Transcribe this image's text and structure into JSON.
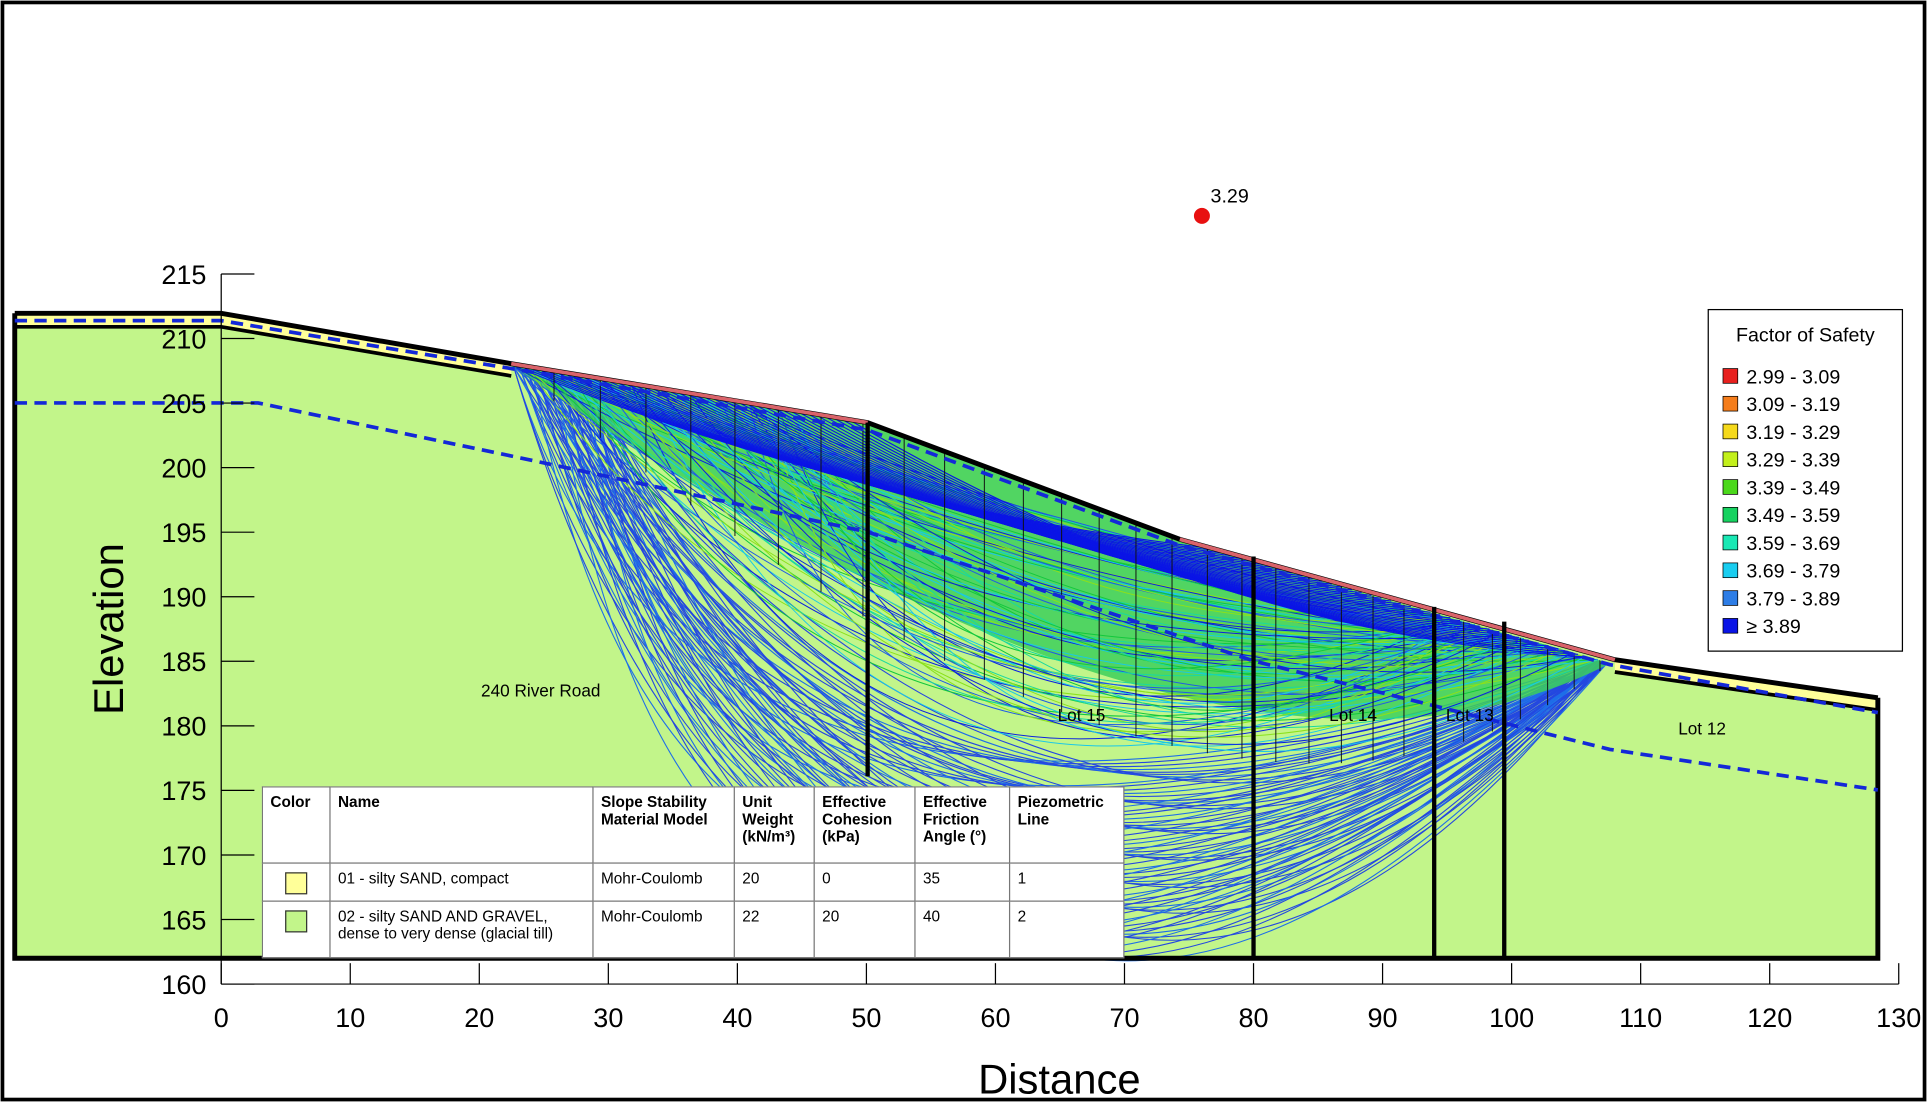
{
  "chart_data": {
    "type": "slope-stability",
    "x_label": "Distance",
    "y_label": "Elevation",
    "xlim": [
      0,
      130
    ],
    "ylim": [
      160,
      215
    ],
    "xticks": [
      0,
      10,
      20,
      30,
      40,
      50,
      60,
      70,
      80,
      90,
      100,
      110,
      120,
      130
    ],
    "yticks": [
      160,
      165,
      170,
      175,
      180,
      185,
      190,
      195,
      200,
      205,
      210,
      215
    ],
    "critical_center": {
      "x": 76,
      "y": 219.5,
      "factor_of_safety": 3.29,
      "color": "#e81010"
    },
    "region_labels": [
      "240 River Road",
      "Lot 15",
      "Lot 14",
      "Lot 13",
      "Lot 12"
    ],
    "legend": {
      "title": "Factor of Safety",
      "items": [
        {
          "label": "2.99 - 3.09",
          "color": "#e8201e"
        },
        {
          "label": "3.09 - 3.19",
          "color": "#f57d1b"
        },
        {
          "label": "3.19 - 3.29",
          "color": "#f5d91b"
        },
        {
          "label": "3.29 - 3.39",
          "color": "#c3f01b"
        },
        {
          "label": "3.39 - 3.49",
          "color": "#4bd81b"
        },
        {
          "label": "3.49 - 3.59",
          "color": "#16d260"
        },
        {
          "label": "3.59 - 3.69",
          "color": "#19e8b4"
        },
        {
          "label": "3.69 - 3.79",
          "color": "#19cdf0"
        },
        {
          "label": "3.79 - 3.89",
          "color": "#2d7de6"
        },
        {
          "label": "≥ 3.89",
          "color": "#0a14e6"
        }
      ]
    },
    "materials_table": {
      "headers": [
        "Color",
        "Name",
        "Slope Stability Material Model",
        "Unit Weight (kN/m³)",
        "Effective Cohesion (kPa)",
        "Effective Friction Angle (°)",
        "Piezometric Line"
      ],
      "rows": [
        {
          "color": "#ffff99",
          "cells": [
            "01 - silty SAND, compact",
            "Mohr-Coulomb",
            20,
            0,
            35,
            1
          ]
        },
        {
          "color": "#c2f58a",
          "cells": [
            "02 - silty SAND AND GRAVEL, dense to very dense (glacial till)",
            "Mohr-Coulomb",
            22,
            20,
            40,
            2
          ]
        }
      ]
    }
  }
}
